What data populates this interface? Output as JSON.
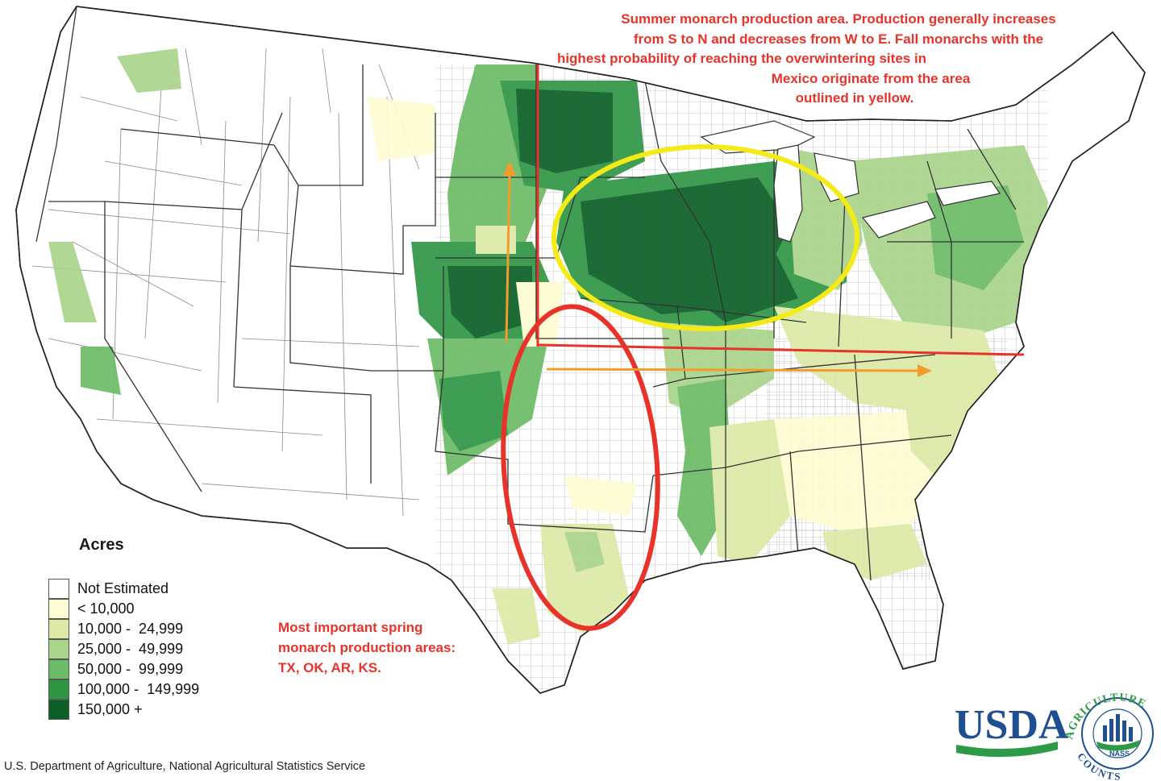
{
  "annotations": {
    "summer_lines": [
      "Summer monarch production area. Production generally increases",
      "from S to N and decreases from W to E. Fall monarchs with the",
      "highest probability of reaching the overwintering sites in",
      "Mexico originate from the area",
      "outlined in yellow."
    ],
    "spring_lines": [
      "Most important spring",
      "monarch production areas:",
      "TX, OK, AR, KS."
    ]
  },
  "legend": {
    "title": "Acres",
    "items": [
      {
        "label": "Not Estimated",
        "color": "#ffffff"
      },
      {
        "label": "< 10,000",
        "color": "#fdfcd2"
      },
      {
        "label": "10,000 -  24,999",
        "color": "#dceaa6"
      },
      {
        "label": "25,000 -  49,999",
        "color": "#a9d48a"
      },
      {
        "label": "50,000 -  99,999",
        "color": "#6cbb67"
      },
      {
        "label": "100,000 -  149,999",
        "color": "#2f9645"
      },
      {
        "label": "150,000 +",
        "color": "#0b5f28"
      }
    ]
  },
  "credit": "U.S. Department of Agriculture, National Agricultural Statistics Service",
  "logo": {
    "usda": "USDA",
    "ring_top": "AGRICULTURE",
    "ring_bottom": "COUNTS",
    "badge": "NASS"
  },
  "colors": {
    "outline_red": "#e8332a",
    "outline_yellow": "#f3ea16",
    "arrow_orange": "#f39c2b",
    "usda_blue": "#1d4f91",
    "usda_green": "#2e9a47"
  }
}
